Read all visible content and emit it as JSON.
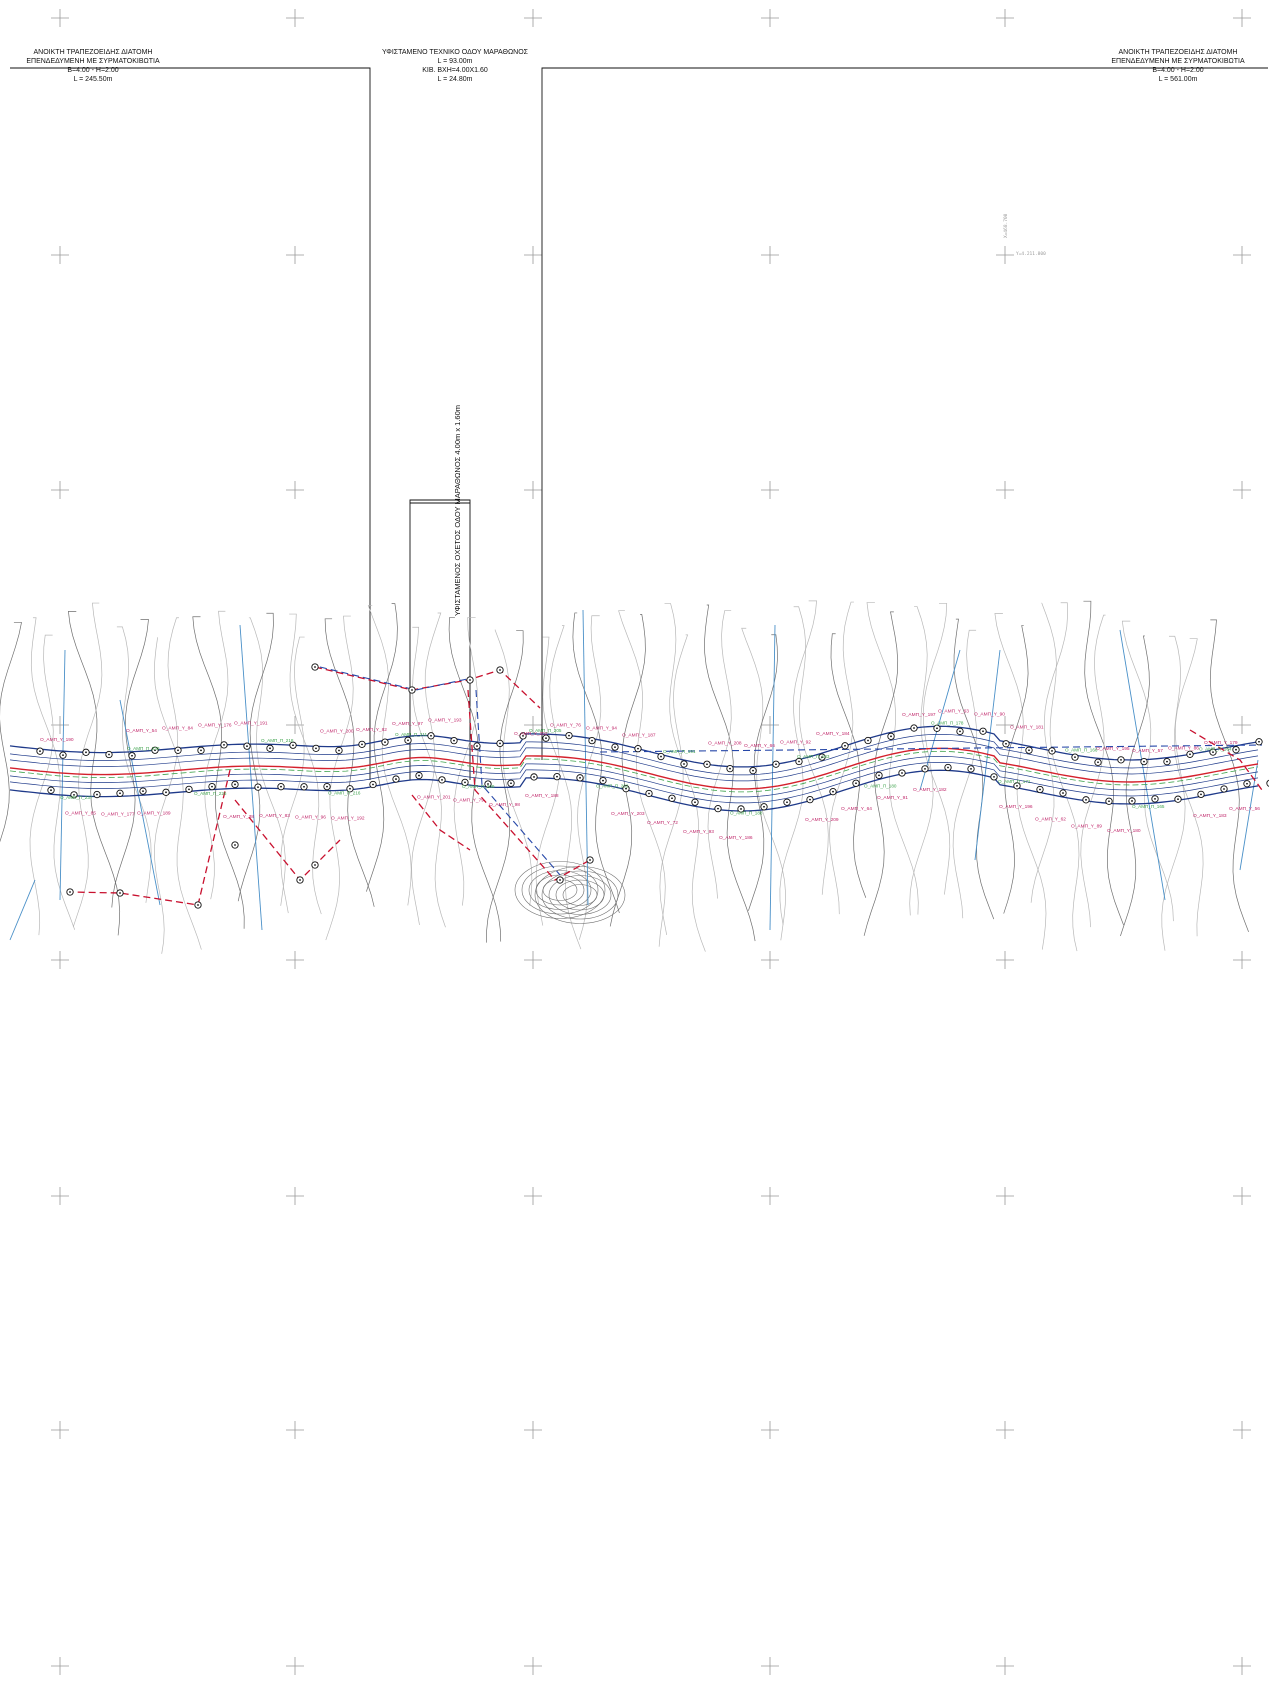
{
  "notes": {
    "left": {
      "line1": "ΑΝΟΙΚΤΗ ΤΡΑΠΕΖΟΕΙΔΗΣ ΔΙΑΤΟΜΗ",
      "line2": "ΕΠΕΝΔΕΔΥΜΕΝΗ ΜΕ ΣΥΡΜΑΤΟΚΙΒΩΤΙΑ",
      "line3": "B=4.00 - H=2.00",
      "line4": "L = 245.50m"
    },
    "middle": {
      "line1": "ΥΦΙΣΤΑΜΕΝΟ ΤΕΧΝΙΚΟ ΟΔΟΥ ΜΑΡΑΘΩΝΟΣ",
      "line2": "L = 93.00m",
      "line3": "ΚΙΒ. ΒΧΗ=4.00Χ1.60",
      "line4": "L = 24.80m"
    },
    "right": {
      "line1": "ΑΝΟΙΚΤΗ ΤΡΑΠΕΖΟΕΙΔΗΣ ΔΙΑΤΟΜΗ",
      "line2": "ΕΠΕΝΔΕΔΥΜΕΝΗ ΜΕ ΣΥΡΜΑΤΟΚΙΒΩΤΙΑ",
      "line3": "B=4.00 - H=2.00",
      "line4": "L = 561.00m"
    }
  },
  "culvert_label": "ΥΦΙΣΤΑΜΕΝΟΣ ΟΧΕΤΟΣ ΟΔΟΥ ΜΑΡΑΘΩΝΟΣ 4.00m x 1.60m",
  "coordinates": {
    "y_grid": "Y=4.211.800",
    "x_grid": "X=468.700"
  },
  "point_labels": [
    "O_AMΠ_Y_190",
    "O_AMΠ_Y_189",
    "O_AMΠ_Y_191",
    "O_AMΠ_Y_192",
    "O_AMΠ_Y_193",
    "O_AMΠ_Y_188",
    "O_AMΠ_Y_187",
    "O_AMΠ_Y_186",
    "O_AMΠ_Y_184",
    "O_AMΠ_Y_182",
    "O_AMΠ_Y_181",
    "O_AMΠ_Y_180",
    "O_AMΠ_Y_179",
    "O_AMΠ_Y_177",
    "O_AMΠ_Y_176",
    "O_AMΠ_Y_96",
    "O_AMΠ_Y_97",
    "O_AMΠ_Y_98",
    "O_AMΠ_Y_94",
    "O_AMΠ_Y_93",
    "O_AMΠ_Y_92",
    "O_AMΠ_Y_91",
    "O_AMΠ_Y_90",
    "O_AMΠ_Y_89",
    "O_AMΠ_Y_86",
    "O_AMΠ_Y_85",
    "O_AMΠ_Y_84",
    "O_AMΠ_Y_83",
    "O_AMΠ_Y_82",
    "O_AMΠ_Y_79",
    "O_AMΠ_Y_76",
    "O_AMΠ_Y_72",
    "O_AMΠ_Y_66",
    "O_AMΠ_Y_64",
    "O_AMΠ_Y_63",
    "O_AMΠ_Y_62",
    "O_AMΠ_Y_57",
    "O_AMΠ_Y_56",
    "O_AMΠ_Y_54",
    "O_AMΠ_Y_38",
    "O_AMΠ_Y_200",
    "O_AMΠ_Y_201",
    "O_AMΠ_Y_202",
    "O_AMΠ_Y_203",
    "O_AMΠ_Y_208",
    "O_AMΠ_Y_209",
    "O_AMΠ_Y_197",
    "O_AMΠ_Y_196",
    "O_AMΠ_Y_195",
    "O_AMΠ_Y_183"
  ],
  "green_labels": [
    "O_AMΠ_Π_237",
    "O_AMΠ_Π_230",
    "O_AMΠ_Π_226",
    "O_AMΠ_Π_218",
    "O_AMΠ_Π_216",
    "O_AMΠ_Π_211",
    "O_AMΠ_Π_209",
    "O_AMΠ_Π_205",
    "O_AMΠ_Π_202",
    "O_AMΠ_Π_191",
    "O_AMΠ_Π_188",
    "O_AMΠ_Π_183",
    "O_AMΠ_Π_180",
    "O_AMΠ_Π_178",
    "O_AMΠ_Π_171",
    "O_AMΠ_Π_166",
    "O_AMΠ_Π_165",
    "O_AMΠ_Π_164"
  ],
  "colors": {
    "contour": "#6f6f6f",
    "contour_light": "#b8b8b8",
    "channel": "#1f3a8a",
    "axis_red": "#d4202c",
    "dashed_red": "#c8102e",
    "dashed_blue": "#2647a8",
    "green": "#3fa34d",
    "magenta": "#c0266a",
    "crosslines": "#4a90c8",
    "grid_cross": "#999999"
  }
}
